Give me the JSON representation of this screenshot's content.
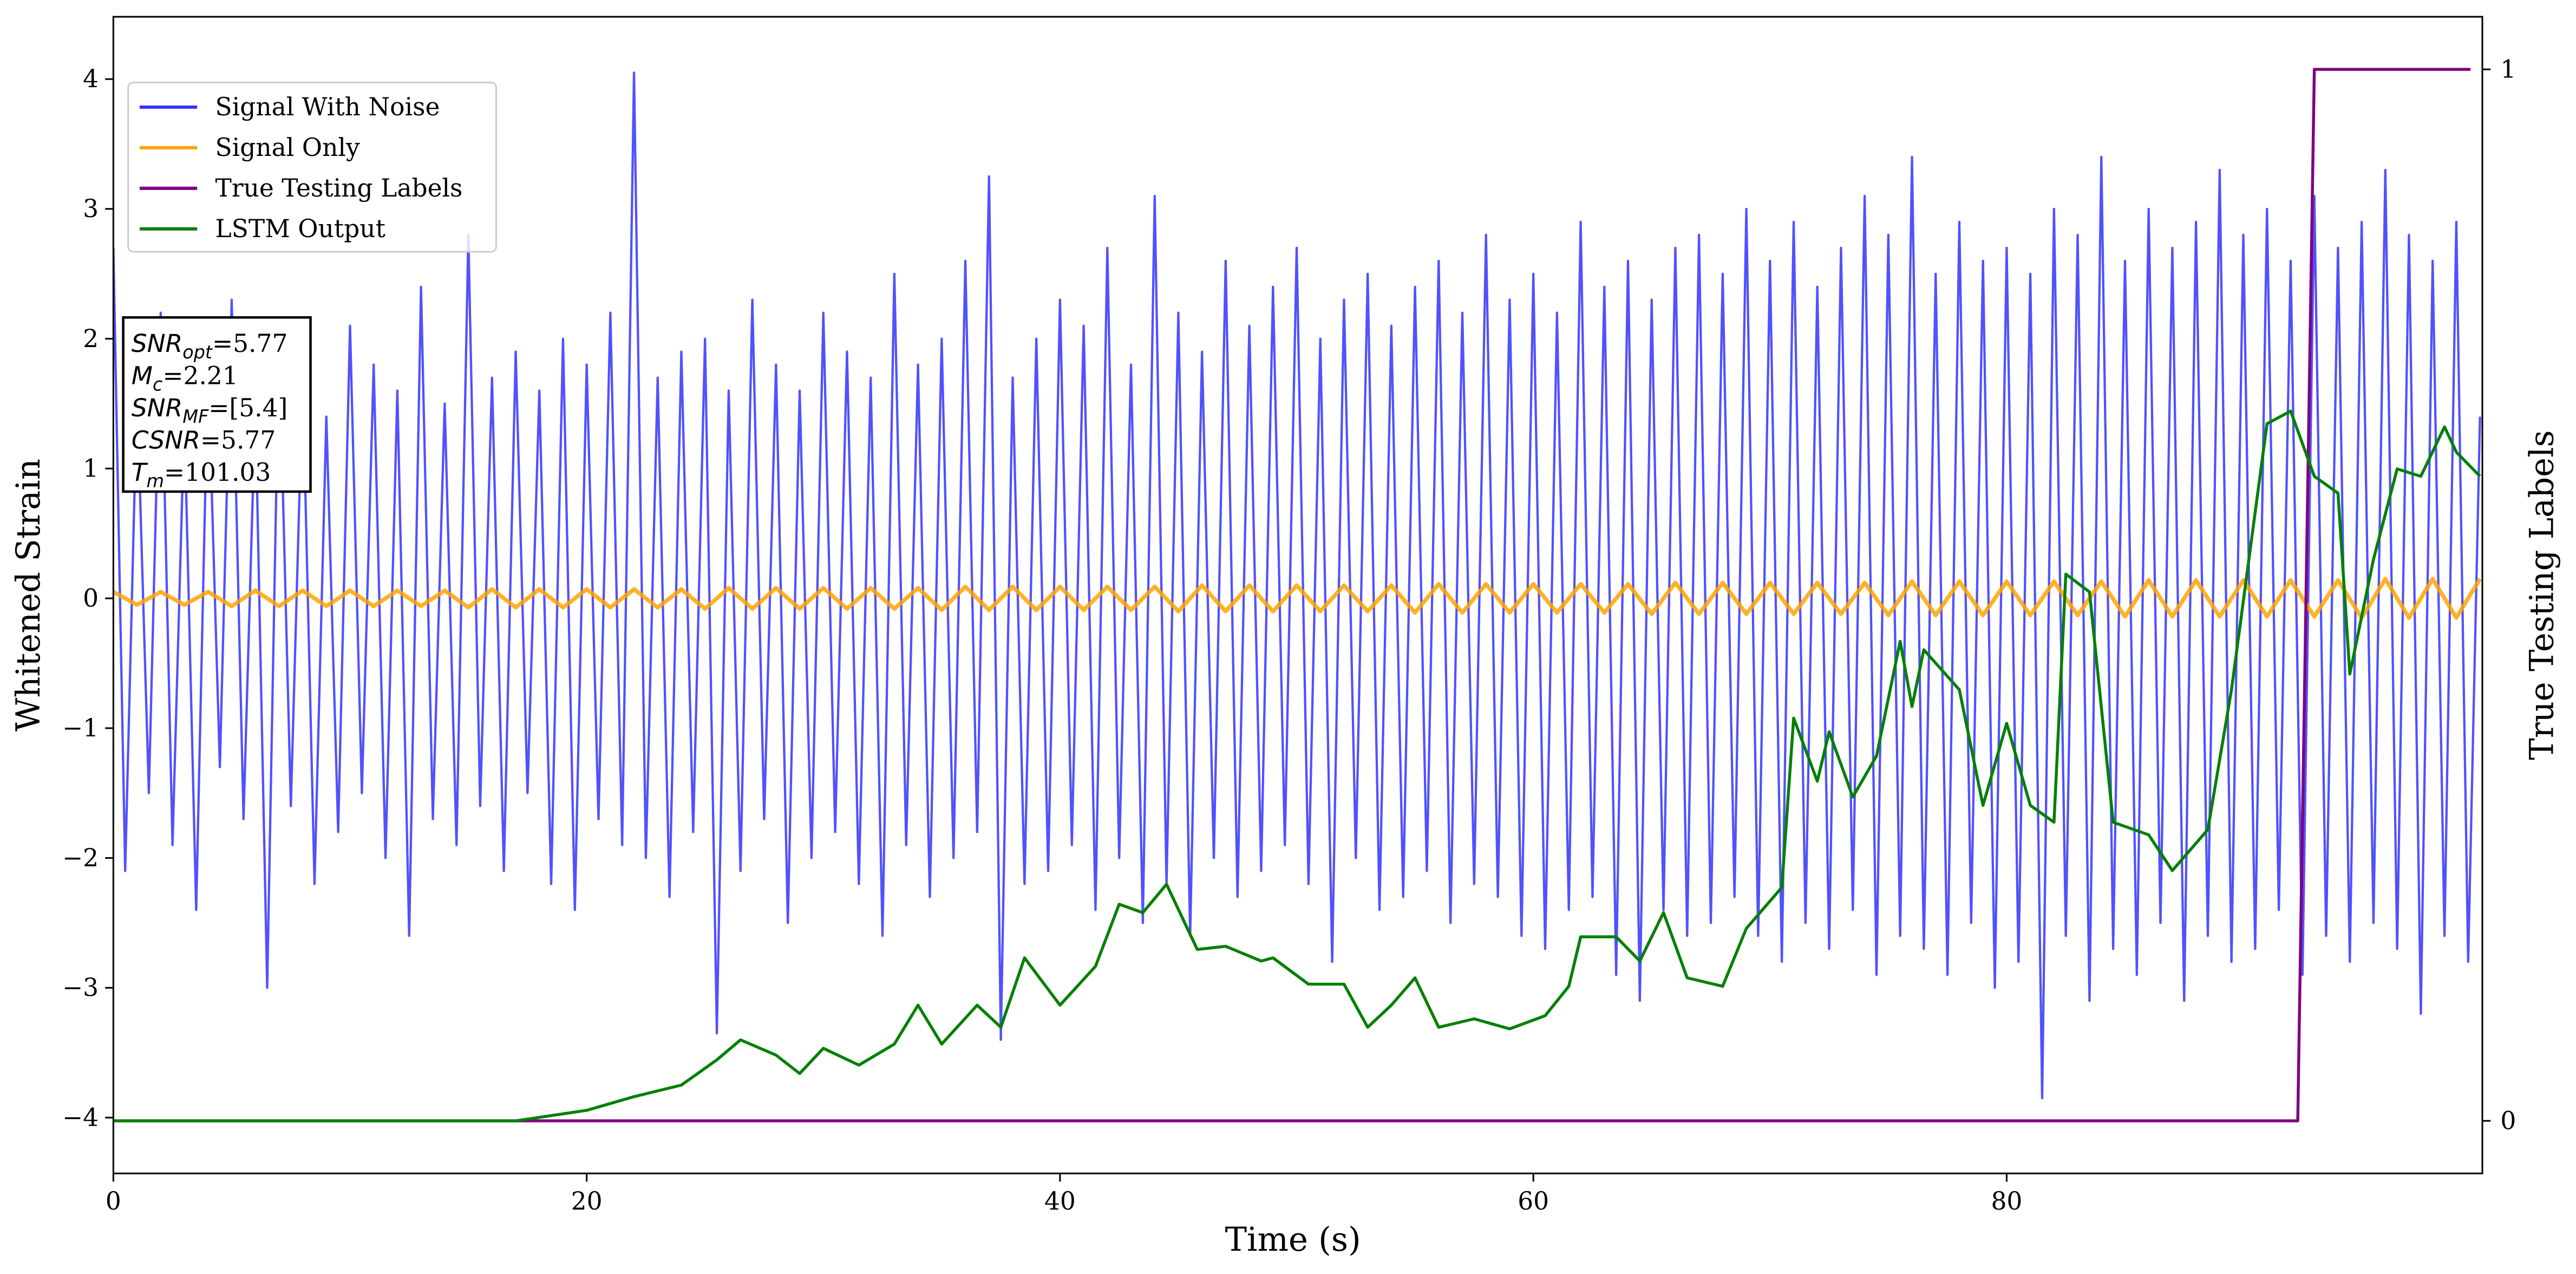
{
  "chart_data": {
    "type": "line",
    "xlabel": "Time (s)",
    "ylabel": "Whitened Strain",
    "y2label": "True Testing Labels",
    "xlim": [
      0,
      100.1
    ],
    "ylim": [
      -4.43,
      4.48
    ],
    "y2lim": [
      -0.05,
      1.05
    ],
    "xticks": [
      0,
      20,
      40,
      60,
      80
    ],
    "yticks": [
      {
        "value": -4,
        "label": "−4"
      },
      {
        "value": -3,
        "label": "−3"
      },
      {
        "value": -2,
        "label": "−2"
      },
      {
        "value": -1,
        "label": "−1"
      },
      0,
      1,
      2,
      3,
      4
    ],
    "y2ticks": [
      0,
      1
    ],
    "legend": "upper left",
    "annotations": [
      {
        "text": "SNR",
        "sub": "opt",
        "value": "=5.77"
      },
      {
        "text": "M",
        "sub": "c",
        "value": "=2.21"
      },
      {
        "text": "SNR",
        "sub": "MF",
        "value": "=[5.4]"
      },
      {
        "text": "CSNR",
        "value": "=5.77"
      },
      {
        "text": "T",
        "sub": "m",
        "value": "=101.03"
      }
    ],
    "series": [
      {
        "name": "Signal With Noise",
        "color": "#3333ff",
        "x": [
          0,
          0.5,
          1,
          1.5,
          2,
          2.5,
          3,
          3.5,
          4,
          4.5,
          5,
          5.5,
          6,
          6.5,
          7,
          7.5,
          8,
          8.5,
          9,
          9.5,
          10,
          10.5,
          11,
          11.5,
          12,
          12.5,
          13,
          13.5,
          14,
          14.5,
          15,
          15.5,
          16,
          16.5,
          17,
          17.5,
          18,
          18.5,
          19,
          19.5,
          20,
          20.5,
          21,
          21.5,
          22,
          22.5,
          23,
          23.5,
          24,
          24.5,
          25,
          25.5,
          26,
          26.5,
          27,
          27.5,
          28,
          28.5,
          29,
          29.5,
          30,
          30.5,
          31,
          31.5,
          32,
          32.5,
          33,
          33.5,
          34,
          34.5,
          35,
          35.5,
          36,
          36.5,
          37,
          37.5,
          38,
          38.5,
          39,
          39.5,
          40,
          40.5,
          41,
          41.5,
          42,
          42.5,
          43,
          43.5,
          44,
          44.5,
          45,
          45.5,
          46,
          46.5,
          47,
          47.5,
          48,
          48.5,
          49,
          49.5,
          50,
          50.5,
          51,
          51.5,
          52,
          52.5,
          53,
          53.5,
          54,
          54.5,
          55,
          55.5,
          56,
          56.5,
          57,
          57.5,
          58,
          58.5,
          59,
          59.5,
          60,
          60.5,
          61,
          61.5,
          62,
          62.5,
          63,
          63.5,
          64,
          64.5,
          65,
          65.5,
          66,
          66.5,
          67,
          67.5,
          68,
          68.5,
          69,
          69.5,
          70,
          70.5,
          71,
          71.5,
          72,
          72.5,
          73,
          73.5,
          74,
          74.5,
          75,
          75.5,
          76,
          76.5,
          77,
          77.5,
          78,
          78.5,
          79,
          79.5,
          80,
          80.5,
          81,
          81.5,
          82,
          82.5,
          83,
          83.5,
          84,
          84.5,
          85,
          85.5,
          86,
          86.5,
          87,
          87.5,
          88,
          88.5,
          89,
          89.5,
          90,
          90.5,
          91,
          91.5,
          92,
          92.5,
          93,
          93.5,
          94,
          94.5,
          95,
          95.5,
          96,
          96.5,
          97,
          97.5,
          98,
          98.5,
          99,
          99.5,
          100
        ],
        "values": [
          2.7,
          -2.1,
          1.6,
          -1.5,
          2.2,
          -1.9,
          1.4,
          -2.4,
          1.8,
          -1.3,
          2.3,
          -1.7,
          1.5,
          -3.0,
          2.0,
          -1.6,
          1.7,
          -2.2,
          1.4,
          -1.8,
          2.1,
          -1.5,
          1.8,
          -2.0,
          1.6,
          -2.6,
          2.4,
          -1.7,
          1.5,
          -1.9,
          2.8,
          -1.6,
          1.7,
          -2.1,
          1.9,
          -1.5,
          1.6,
          -2.2,
          2.0,
          -2.4,
          1.8,
          -1.7,
          2.2,
          -1.9,
          4.05,
          -2.0,
          1.7,
          -2.3,
          1.9,
          -1.8,
          2.0,
          -3.35,
          1.6,
          -2.1,
          2.3,
          -1.7,
          1.8,
          -2.5,
          1.6,
          -2.0,
          2.2,
          -1.8,
          1.9,
          -2.2,
          1.7,
          -2.6,
          2.5,
          -1.9,
          1.8,
          -2.3,
          2.0,
          -2.0,
          2.6,
          -1.8,
          3.25,
          -3.4,
          1.7,
          -2.2,
          2.0,
          -2.1,
          2.3,
          -1.9,
          2.1,
          -2.4,
          2.7,
          -2.0,
          1.8,
          -2.5,
          3.1,
          -2.2,
          2.2,
          -2.6,
          1.9,
          -2.0,
          2.6,
          -2.3,
          2.1,
          -2.1,
          2.4,
          -1.9,
          2.7,
          -2.2,
          2.0,
          -2.8,
          2.3,
          -2.0,
          2.5,
          -2.4,
          2.1,
          -2.3,
          2.4,
          -2.1,
          2.6,
          -2.5,
          2.2,
          -2.2,
          2.8,
          -2.3,
          2.3,
          -2.6,
          2.5,
          -2.7,
          2.2,
          -2.4,
          2.9,
          -2.3,
          2.4,
          -2.9,
          2.6,
          -3.1,
          2.3,
          -2.4,
          2.7,
          -2.6,
          2.8,
          -2.5,
          2.5,
          -2.3,
          3.0,
          -2.6,
          2.6,
          -2.8,
          2.9,
          -2.5,
          2.4,
          -2.7,
          2.7,
          -2.4,
          3.1,
          -2.9,
          2.8,
          -2.6,
          3.4,
          -2.7,
          2.5,
          -2.9,
          2.9,
          -2.5,
          2.6,
          -3.0,
          2.7,
          -2.8,
          2.5,
          -3.85,
          3.0,
          -2.6,
          2.8,
          -3.1,
          3.4,
          -2.7,
          2.6,
          -2.9,
          3.0,
          -2.5,
          2.7,
          -3.1,
          2.9,
          -2.6,
          3.3,
          -2.8,
          2.8,
          -2.7,
          3.0,
          -2.4,
          2.6,
          -2.9,
          3.1,
          -2.6,
          2.7,
          -2.8,
          2.9,
          -2.5,
          3.3,
          -2.7,
          2.8,
          -3.2,
          2.6,
          -2.6,
          2.9,
          -2.8,
          1.4
        ]
      },
      {
        "name": "Signal Only",
        "color": "#ffa500",
        "x": [
          0,
          1,
          2,
          3,
          4,
          5,
          6,
          7,
          8,
          9,
          10,
          11,
          12,
          13,
          14,
          15,
          16,
          17,
          18,
          19,
          20,
          21,
          22,
          23,
          24,
          25,
          26,
          27,
          28,
          29,
          30,
          31,
          32,
          33,
          34,
          35,
          36,
          37,
          38,
          39,
          40,
          41,
          42,
          43,
          44,
          45,
          46,
          47,
          48,
          49,
          50,
          51,
          52,
          53,
          54,
          55,
          56,
          57,
          58,
          59,
          60,
          61,
          62,
          63,
          64,
          65,
          66,
          67,
          68,
          69,
          70,
          71,
          72,
          73,
          74,
          75,
          76,
          77,
          78,
          79,
          80,
          81,
          82,
          83,
          84,
          85,
          86,
          87,
          88,
          89,
          90,
          91,
          92,
          93,
          94,
          95,
          96,
          97,
          98,
          99,
          100
        ],
        "values": [
          0.05,
          -0.05,
          0.05,
          -0.05,
          0.05,
          -0.06,
          0.06,
          -0.06,
          0.06,
          -0.06,
          0.06,
          -0.06,
          0.06,
          -0.06,
          0.06,
          -0.07,
          0.07,
          -0.07,
          0.07,
          -0.07,
          0.07,
          -0.07,
          0.07,
          -0.07,
          0.07,
          -0.08,
          0.08,
          -0.08,
          0.08,
          -0.08,
          0.08,
          -0.08,
          0.08,
          -0.08,
          0.08,
          -0.09,
          0.09,
          -0.09,
          0.09,
          -0.09,
          0.09,
          -0.09,
          0.09,
          -0.09,
          0.09,
          -0.1,
          0.1,
          -0.1,
          0.1,
          -0.1,
          0.1,
          -0.1,
          0.1,
          -0.1,
          0.1,
          -0.11,
          0.11,
          -0.11,
          0.11,
          -0.11,
          0.11,
          -0.11,
          0.11,
          -0.11,
          0.11,
          -0.12,
          0.12,
          -0.12,
          0.12,
          -0.12,
          0.12,
          -0.12,
          0.12,
          -0.12,
          0.12,
          -0.13,
          0.13,
          -0.13,
          0.13,
          -0.13,
          0.13,
          -0.13,
          0.13,
          -0.13,
          0.13,
          -0.14,
          0.14,
          -0.14,
          0.14,
          -0.14,
          0.14,
          -0.14,
          0.14,
          -0.14,
          0.14,
          -0.15,
          0.15,
          -0.15,
          0.15,
          -0.15,
          0.15
        ]
      },
      {
        "name": "True Testing Labels",
        "color": "#800080",
        "axis": "y2",
        "x": [
          0,
          92.3,
          93.0,
          99.6
        ],
        "values": [
          0,
          0,
          1,
          1
        ]
      },
      {
        "name": "LSTM Output",
        "color": "#008000",
        "axis": "y2",
        "x": [
          0,
          17,
          20,
          22,
          24,
          25.5,
          26.5,
          28,
          29,
          30,
          31.5,
          33,
          34,
          35,
          36.5,
          37.5,
          38.5,
          40,
          41.5,
          42.5,
          43.5,
          44.5,
          45.8,
          47,
          48.5,
          49,
          50.5,
          52,
          53,
          54,
          55,
          56,
          57.5,
          59,
          60.5,
          61.5,
          62,
          63.5,
          64.5,
          65.5,
          66.5,
          68,
          69,
          70.5,
          71,
          72,
          72.5,
          73.5,
          74.5,
          75.5,
          76,
          76.5,
          78,
          79,
          80,
          81,
          82,
          82.5,
          83.5,
          84.5,
          86,
          87,
          88.5,
          89.5,
          91,
          92,
          93,
          94,
          94.5,
          95.5,
          96.5,
          97.5,
          98.5,
          99,
          100
        ],
        "values": [
          0,
          0,
          0.01,
          0.023,
          0.034,
          0.058,
          0.077,
          0.0625,
          0.045,
          0.069,
          0.053,
          0.073,
          0.11,
          0.073,
          0.11,
          0.089,
          0.155,
          0.11,
          0.147,
          0.206,
          0.198,
          0.225,
          0.163,
          0.166,
          0.152,
          0.155,
          0.13,
          0.13,
          0.089,
          0.11,
          0.136,
          0.089,
          0.097,
          0.0875,
          0.1,
          0.128,
          0.175,
          0.175,
          0.152,
          0.198,
          0.136,
          0.128,
          0.183,
          0.222,
          0.383,
          0.323,
          0.37,
          0.308,
          0.347,
          0.456,
          0.394,
          0.448,
          0.41,
          0.3,
          0.378,
          0.3,
          0.284,
          0.52,
          0.503,
          0.284,
          0.272,
          0.238,
          0.277,
          0.41,
          0.663,
          0.675,
          0.613,
          0.597,
          0.425,
          0.534,
          0.62,
          0.613,
          0.66,
          0.636,
          0.613
        ]
      }
    ]
  }
}
